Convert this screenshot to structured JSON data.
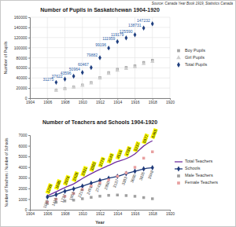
{
  "chart_data": [
    {
      "type": "scatter",
      "title": "Number of Pupils in Saskatchewan 1904-1920",
      "annotations": [
        "Source: Canada Year Book 1919, Statistics Canada"
      ],
      "y_label": "Number of Pupils",
      "x": [
        1907,
        1908,
        1909,
        1910,
        1911,
        1912,
        1913,
        1914,
        1915,
        1916,
        1917,
        1918
      ],
      "xlim": [
        1904,
        1920
      ],
      "xticks": [
        1904,
        1906,
        1908,
        1910,
        1912,
        1914,
        1916,
        1918,
        1920
      ],
      "ylim": [
        0,
        160000
      ],
      "yticks": [
        0,
        20000,
        40000,
        60000,
        80000,
        100000,
        120000,
        140000,
        160000
      ],
      "grid": true,
      "legend": "right",
      "series": [
        {
          "name": "Boy Pupils",
          "color": "#a6a6a6",
          "marker": "square",
          "values": [
            16000,
            19200,
            22300,
            26000,
            30900,
            40700,
            50600,
            57100,
            60800,
            64000,
            70700,
            75000
          ]
        },
        {
          "name": "Girl Pupils",
          "color": "#cfcfcf",
          "marker": "triangle",
          "values": [
            15300,
            18400,
            21300,
            25000,
            29600,
            39200,
            48600,
            54900,
            58400,
            61600,
            68000,
            72200
          ]
        },
        {
          "name": "Total Pupils",
          "color": "#1f3f7f",
          "marker": "diamond",
          "data_labels": true,
          "values": [
            31275,
            37622,
            43596,
            50964,
            60467,
            79882,
            99196,
            111959,
            119179,
            125590,
            138731,
            147232
          ]
        }
      ]
    },
    {
      "type": "line",
      "title": "Number of Teachers and Schools 1904-1920",
      "x_label": "Year",
      "y_label": "Number of Teachers / Number of Schools",
      "x": [
        1906,
        1907,
        1908,
        1909,
        1910,
        1911,
        1912,
        1913,
        1914,
        1915,
        1916,
        1917,
        1918
      ],
      "xlim": [
        1904,
        1920
      ],
      "xticks": [
        1904,
        1906,
        1908,
        1910,
        1912,
        1914,
        1916,
        1918,
        1920
      ],
      "ylim": [
        0,
        7000
      ],
      "yticks": [
        0,
        1000,
        2000,
        3000,
        4000,
        5000,
        6000,
        7000
      ],
      "grid": false,
      "legend": "right",
      "series": [
        {
          "name": "Total Teachers",
          "type": "line",
          "color": "#7030a0",
          "marker": "none",
          "line_style": "solid",
          "data_labels": true,
          "values": [
            1299,
            1686,
            2078,
            2428,
            2931,
            3383,
            3779,
            4149,
            4516,
            4788,
            5237,
            5977,
            6465
          ]
        },
        {
          "name": "Schools",
          "type": "line",
          "color": "#1f3a7a",
          "marker": "diamond",
          "line_style": "solid",
          "data_labels": true,
          "values": [
            1190,
            1416,
            1737,
            1953,
            2219,
            2491,
            2743,
            2950,
            3137,
            3383,
            3606,
            3826,
            3948
          ]
        },
        {
          "name": "Male Teachers",
          "type": "scatter",
          "color": "#a0a0a0",
          "marker": "square",
          "values": [
            590,
            700,
            820,
            900,
            1030,
            1160,
            1270,
            1350,
            1380,
            1330,
            1260,
            1140,
            1030
          ]
        },
        {
          "name": "Female Teachers",
          "type": "scatter",
          "color": "#e8a0a0",
          "marker": "square",
          "values": [
            709,
            986,
            1258,
            1528,
            1901,
            2223,
            2509,
            2799,
            3136,
            3458,
            3977,
            4837,
            5435
          ]
        }
      ]
    }
  ]
}
